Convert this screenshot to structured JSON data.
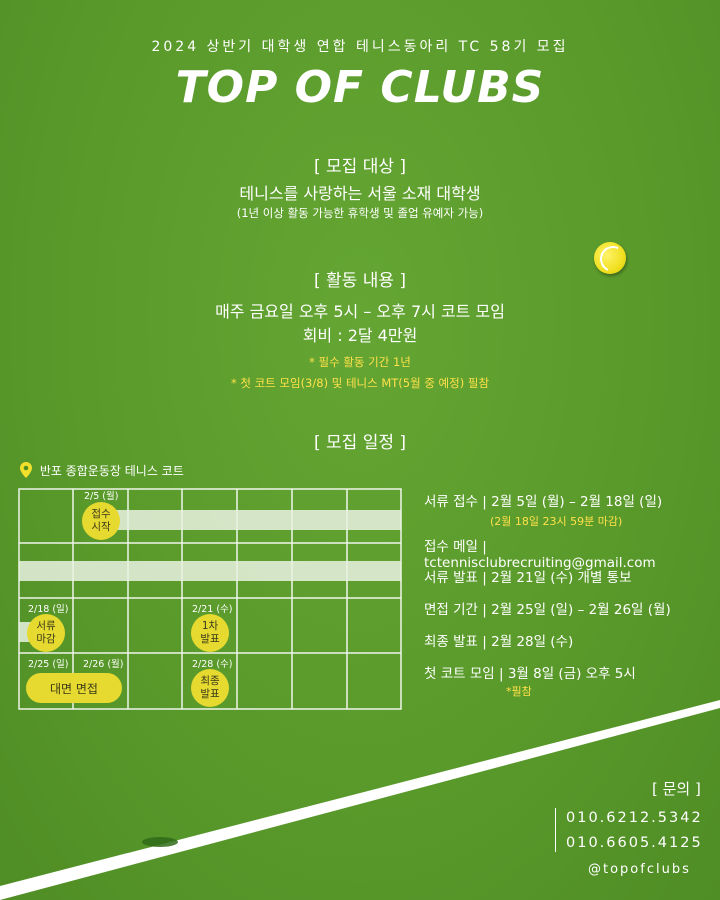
{
  "header": {
    "subtitle": "2024 상반기 대학생 연합 테니스동아리 TC 58기 모집",
    "title": "TOP OF CLUBS"
  },
  "recruit_target": {
    "heading": "[ 모집 대상 ]",
    "line": "테니스를 사랑하는 서울 소재 대학생",
    "note": "(1년 이상 활동 가능한 휴학생 및 졸업 유예자 가능)"
  },
  "activity": {
    "heading": "[ 활동 내용 ]",
    "line1": "매주 금요일 오후 5시 – 오후 7시 코트 모임",
    "line2": "회비 : 2달 4만원",
    "note1": "* 필수 활동 기간 1년",
    "note2": "* 첫 코트 모임(3/8) 및 테니스 MT(5월 중 예정) 필참"
  },
  "schedule_heading": "[ 모집 일정 ]",
  "location": {
    "icon": "location-pin-icon",
    "label": "반포 종합운동장  테니스 코트"
  },
  "calendar": {
    "dates": {
      "d25": "2/5 (월)",
      "d218": "2/18 (일)",
      "d221": "2/21 (수)",
      "d225": "2/25 (일)",
      "d226": "2/26 (월)",
      "d228": "2/28 (수)"
    },
    "badges": {
      "start": "접수\n시작",
      "close": "서류\n마감",
      "first": "1차\n발표",
      "final": "최종\n발표",
      "interview": "대면 면접"
    }
  },
  "schedule": [
    {
      "text": "서류 접수 | 2월 5일 (월) – 2월 18일 (일)",
      "note": "(2월 18일 23시 59분 마감)"
    },
    {
      "text": "접수 메일 | tctennisclubrecruiting@gmail.com",
      "note": ""
    },
    {
      "text": "서류 발표 | 2월 21일 (수) 개별 통보",
      "note": ""
    },
    {
      "text": "면접 기간 | 2월 25일 (일) – 2월 26일 (월)",
      "note": ""
    },
    {
      "text": "최종 발표 | 2월 28일 (수)",
      "note": ""
    },
    {
      "text": "첫 코트 모임 | 3월 8일 (금) 오후 5시",
      "note": "*필참"
    }
  ],
  "contact": {
    "heading": "[ 문의 ]",
    "phone1": "010.6212.5342",
    "phone2": "010.6605.4125",
    "instagram": "@topofclubs"
  },
  "colors": {
    "background": "#5b9a2c",
    "accent_yellow": "#ffe14a",
    "badge": "#e6d930"
  }
}
